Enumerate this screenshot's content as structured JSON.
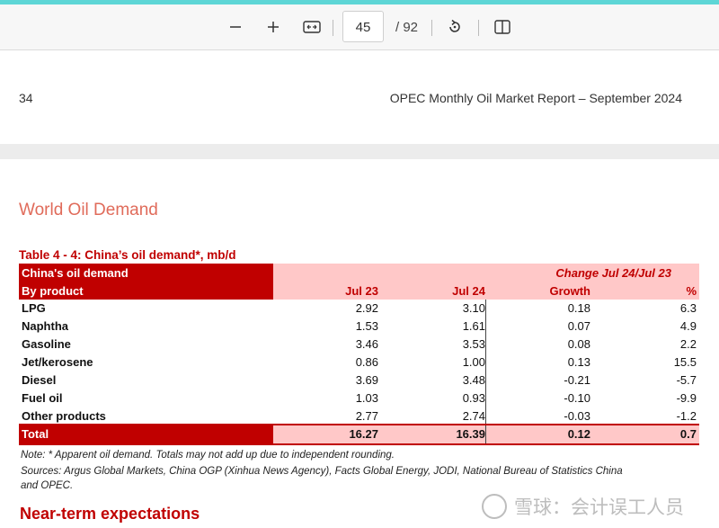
{
  "toolbar": {
    "zoom_out_icon": "minus-icon",
    "zoom_in_icon": "plus-icon",
    "current_page": "45",
    "total_pages": "/ 92"
  },
  "header": {
    "page_number": "34",
    "report_title": "OPEC Monthly Oil Market Report – September 2024"
  },
  "section_title": "World Oil Demand",
  "table": {
    "title": "Table 4 - 4: China’s oil demand*, mb/d",
    "header_row1_left": "China's oil demand",
    "header_row1_right": "Change  Jul 24/Jul 23",
    "header_row2": [
      "By product",
      "Jul 23",
      "Jul 24",
      "Growth",
      "%"
    ],
    "rows": [
      [
        "LPG",
        "2.92",
        "3.10",
        "0.18",
        "6.3"
      ],
      [
        "Naphtha",
        "1.53",
        "1.61",
        "0.07",
        "4.9"
      ],
      [
        "Gasoline",
        "3.46",
        "3.53",
        "0.08",
        "2.2"
      ],
      [
        "Jet/kerosene",
        "0.86",
        "1.00",
        "0.13",
        "15.5"
      ],
      [
        "Diesel",
        "3.69",
        "3.48",
        "-0.21",
        "-5.7"
      ],
      [
        "Fuel oil",
        "1.03",
        "0.93",
        "-0.10",
        "-9.9"
      ],
      [
        "Other products",
        "2.77",
        "2.74",
        "-0.03",
        "-1.2"
      ]
    ],
    "total": [
      "Total",
      "16.27",
      "16.39",
      "0.12",
      "0.7"
    ]
  },
  "notes": {
    "note": "Note: * Apparent oil demand. Totals may not add up due to independent rounding.",
    "sources_line1": "Sources: Argus Global Markets, China OGP (Xinhua News Agency), Facts Global Energy, JODI, National Bureau of Statistics China",
    "sources_line2": "and OPEC."
  },
  "next_section_title": "Near-term expectations",
  "watermark": "雪球：会计误工人员",
  "colors": {
    "accent_red": "#c00000",
    "header_pink": "#ffc8c8",
    "section_title": "#e06b5a",
    "top_strip": "#5ed6d6"
  }
}
